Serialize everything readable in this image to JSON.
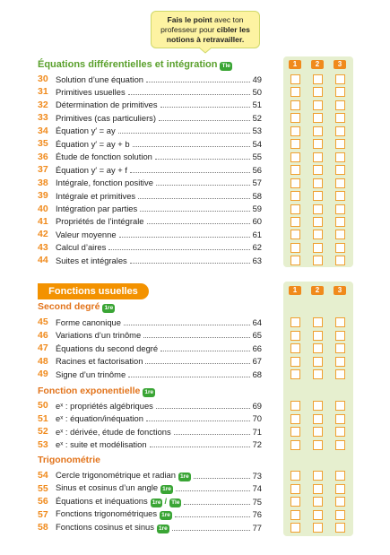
{
  "callout": {
    "segments": [
      "Fais le point",
      " avec ton professeur pour ",
      "cibler les notions à retravailler."
    ]
  },
  "sections": [
    {
      "title": "Équations différentielles et intégration",
      "badge": "Tle",
      "columns": [
        "1",
        "2",
        "3"
      ],
      "items": [
        {
          "number": "30",
          "title": "Solution d’une équation",
          "page": 49
        },
        {
          "number": "31",
          "title": "Primitives usuelles",
          "page": 50
        },
        {
          "number": "32",
          "title": "Détermination de primitives",
          "page": 51
        },
        {
          "number": "33",
          "title": "Primitives (cas particuliers)",
          "page": 52
        },
        {
          "number": "34",
          "title": "Équation y′ = ay",
          "page": 53
        },
        {
          "number": "35",
          "title": "Équation y′ = ay + b",
          "page": 54
        },
        {
          "number": "36",
          "title": "Étude de fonction solution",
          "page": 55
        },
        {
          "number": "37",
          "title": "Équation y′ = ay + f",
          "page": 56
        },
        {
          "number": "38",
          "title": "Intégrale, fonction positive",
          "page": 57
        },
        {
          "number": "39",
          "title": "Intégrale et primitives",
          "page": 58
        },
        {
          "number": "40",
          "title": "Intégration par parties",
          "page": 59
        },
        {
          "number": "41",
          "title": "Propriétés de l’intégrale",
          "page": 60
        },
        {
          "number": "42",
          "title": "Valeur moyenne",
          "page": 61
        },
        {
          "number": "43",
          "title": "Calcul d’aires",
          "page": 62
        },
        {
          "number": "44",
          "title": "Suites et intégrales",
          "page": 63
        }
      ]
    },
    {
      "title": "Fonctions usuelles",
      "columns": [
        "1",
        "2",
        "3"
      ],
      "groups": [
        {
          "title": "Second degré",
          "badge": "1re",
          "items": [
            {
              "number": "45",
              "title": "Forme canonique",
              "page": 64
            },
            {
              "number": "46",
              "title": "Variations d’un trinôme",
              "page": 65
            },
            {
              "number": "47",
              "title": "Équations du second degré",
              "page": 66
            },
            {
              "number": "48",
              "title": "Racines et factorisation",
              "page": 67
            },
            {
              "number": "49",
              "title": "Signe d’un trinôme",
              "page": 68
            }
          ]
        },
        {
          "title": "Fonction exponentielle",
          "badge": "1re",
          "items": [
            {
              "number": "50",
              "title": "eˣ : propriétés algébriques",
              "page": 69
            },
            {
              "number": "51",
              "title": "eˣ : équation/inéquation",
              "page": 70
            },
            {
              "number": "52",
              "title": "eˣ : dérivée, étude de fonctions",
              "page": 71
            },
            {
              "number": "53",
              "title": "eˣ : suite et modélisation",
              "page": 72
            }
          ]
        },
        {
          "title": "Trigonométrie",
          "items": [
            {
              "number": "54",
              "title": "Cercle trigonométrique et radian",
              "badges": [
                "1re"
              ],
              "page": 73
            },
            {
              "number": "55",
              "title": "Sinus et cosinus d’un angle",
              "badges": [
                "1re"
              ],
              "page": 74
            },
            {
              "number": "56",
              "title": "Équations et inéquations",
              "badges": [
                "1re",
                "Tle"
              ],
              "badge_separator": "/",
              "page": 75
            },
            {
              "number": "57",
              "title": "Fonctions trigonométriques",
              "badges": [
                "1re"
              ],
              "page": 76
            },
            {
              "number": "58",
              "title": "Fonctions cosinus et sinus",
              "badges": [
                "1re"
              ],
              "page": 77
            }
          ]
        }
      ]
    }
  ]
}
